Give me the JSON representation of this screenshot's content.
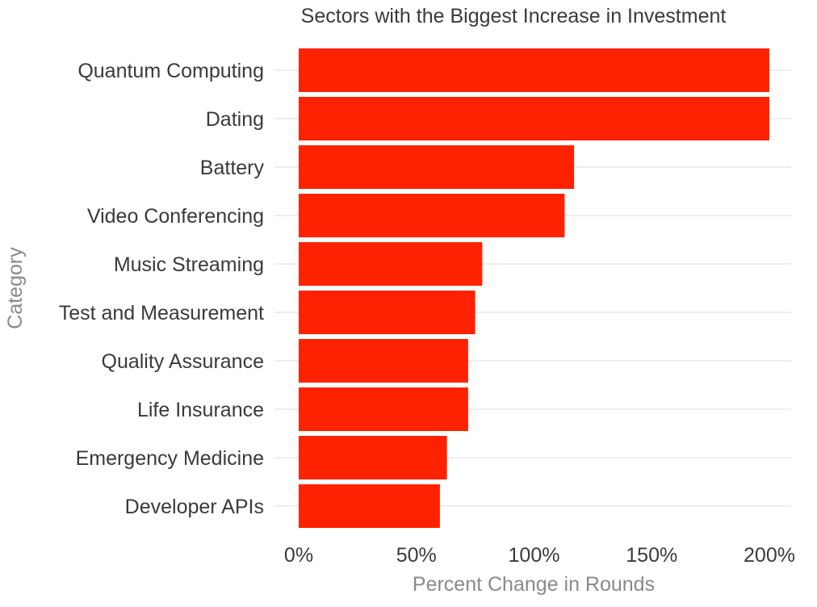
{
  "chart_data": {
    "type": "bar",
    "orientation": "horizontal",
    "title": "Sectors with the Biggest Increase in Investment",
    "xlabel": "Percent Change in Rounds",
    "ylabel": "Category",
    "categories": [
      "Quantum Computing",
      "Dating",
      "Battery",
      "Video Conferencing",
      "Music Streaming",
      "Test and Measurement",
      "Quality Assurance",
      "Life Insurance",
      "Emergency Medicine",
      "Developer APIs"
    ],
    "values": [
      200,
      200,
      117,
      113,
      78,
      75,
      72,
      72,
      63,
      60
    ],
    "xlim": [
      0,
      210
    ],
    "xticks": [
      0,
      50,
      100,
      150,
      200
    ],
    "xtick_labels": [
      "0%",
      "50%",
      "100%",
      "150%",
      "200%"
    ],
    "grid": "horizontal",
    "legend": "none",
    "colors": {
      "bar": "#ff2200",
      "grid": "#e3e3e3",
      "text": "#3a3a3a",
      "axis_title": "#8a8a8a"
    }
  }
}
